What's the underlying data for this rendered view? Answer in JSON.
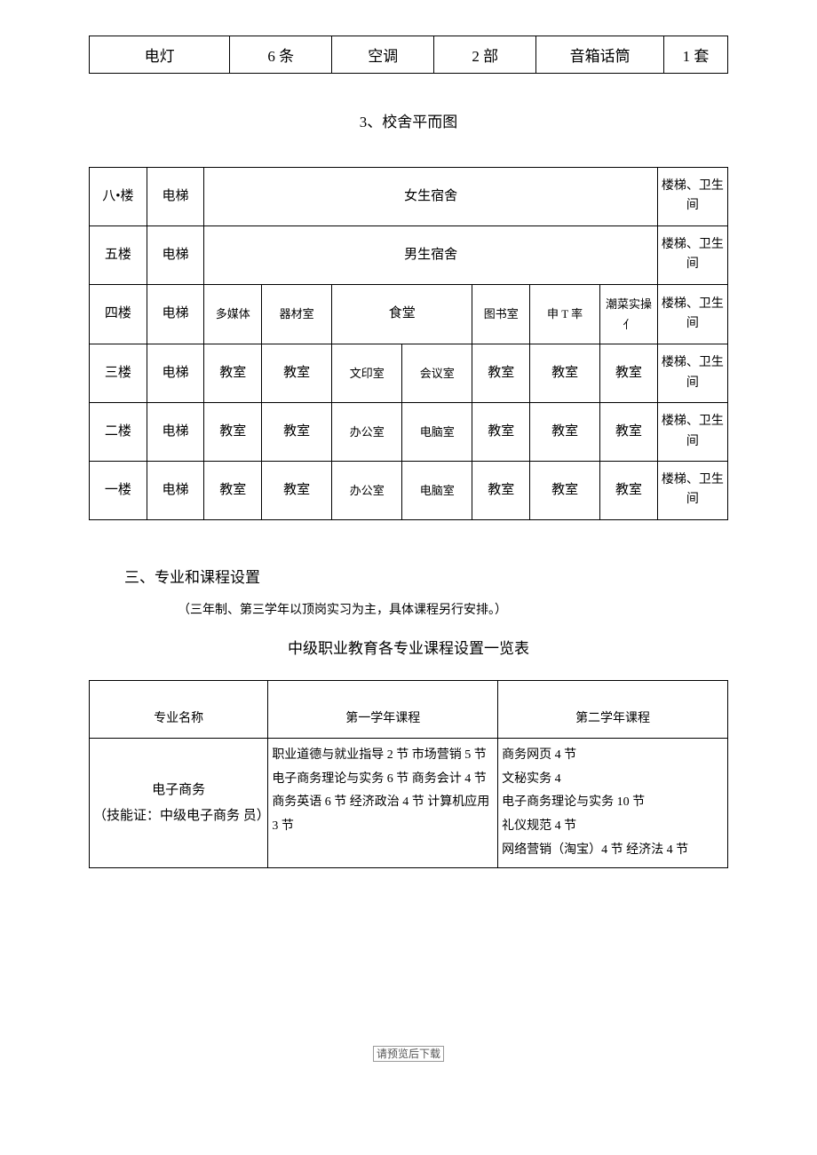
{
  "table1": {
    "cells": [
      "电灯",
      "6 条",
      "空调",
      "2 部",
      "音箱话筒",
      "1 套"
    ],
    "col_widths": [
      "22%",
      "16%",
      "16%",
      "16%",
      "20%",
      "10%"
    ]
  },
  "section3_title": "3、校舍平而图",
  "floorplan": {
    "rows": [
      {
        "floor": "八•楼",
        "elev": "电梯",
        "span_label": "女生宿舍",
        "span": 7,
        "stairs": "楼梯、卫生间"
      },
      {
        "floor": "五楼",
        "elev": "电梯",
        "span_label": "男生宿舍",
        "span": 7,
        "stairs": "楼梯、卫生间"
      },
      {
        "floor": "四楼",
        "elev": "电梯",
        "cells": [
          "多媒体",
          "器材室",
          {
            "label": "食堂",
            "span": 2
          },
          "图书室",
          "申 T 率",
          "潮菜实操亻"
        ],
        "stairs": "楼梯、卫生间"
      },
      {
        "floor": "三楼",
        "elev": "电梯",
        "cells": [
          "教室",
          "教室",
          "文印室",
          "会议室",
          "教室",
          "教室",
          "教室"
        ],
        "stairs": "楼梯、卫生间"
      },
      {
        "floor": "二楼",
        "elev": "电梯",
        "cells": [
          "教室",
          "教室",
          "办公室",
          "电脑室",
          "教室",
          "教室",
          "教室"
        ],
        "stairs": "楼梯、卫生间"
      },
      {
        "floor": "一楼",
        "elev": "电梯",
        "cells": [
          "教室",
          "教室",
          "办公室",
          "电脑室",
          "教室",
          "教室",
          "教室"
        ],
        "stairs": "楼梯、卫生间"
      }
    ],
    "col_widths": [
      "9%",
      "9%",
      "9%",
      "11%",
      "11%",
      "11%",
      "9%",
      "11%",
      "9%",
      "11%"
    ]
  },
  "heading3": "三、专业和课程设置",
  "note": "（三年制、第三学年以顶岗实习为主，具体课程另行安排。）",
  "subtitle": "中级职业教育各专业课程设置一览表",
  "courses": {
    "headers": [
      "专业名称",
      "第一学年课程",
      "第二学年课程"
    ],
    "major_name": "电子商务",
    "major_cert": "（技能证：中级电子商务 员）",
    "year1": "职业道德与就业指导 2 节 市场营销 5 节 电子商务理论与实务 6 节 商务会计 4 节 商务英语 6 节 经济政治 4 节 计算机应用 3 节",
    "year2": "商务网页 4 节\n文秘实务 4\n电子商务理论与实务 10 节\n礼仪规范 4 节\n网络营销（淘宝）4 节 经济法 4 节",
    "col_widths": [
      "28%",
      "36%",
      "36%"
    ]
  },
  "footer": "请预览后下载"
}
